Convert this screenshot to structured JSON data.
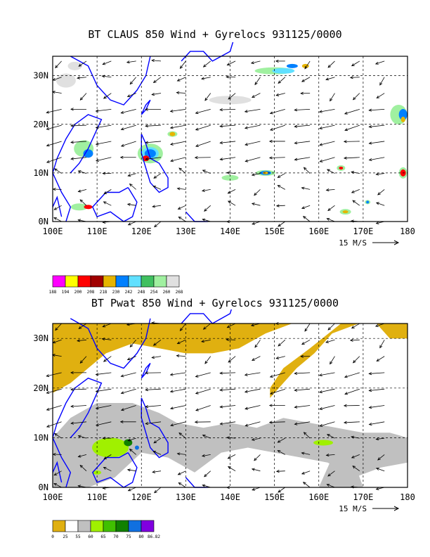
{
  "panels": [
    {
      "title": "BT CLAUS 850 Wind + Gyrelocs 931125/0000",
      "lat_labels": [
        "30N",
        "20N",
        "10N",
        "0N"
      ],
      "lon_labels": [
        "100E",
        "110E",
        "120E",
        "130E",
        "140E",
        "150E",
        "160E",
        "170E",
        "180"
      ],
      "scale_label": "15 M/S",
      "colorbar": {
        "colors": [
          "#ff00ff",
          "#ffff00",
          "#ff0000",
          "#a00000",
          "#e6b400",
          "#0080ff",
          "#60e0ff",
          "#40c060",
          "#a0f0a0",
          "#e0e0e0"
        ],
        "labels": [
          "188",
          "194",
          "200",
          "208",
          "218",
          "230",
          "242",
          "248",
          "254",
          "260",
          "268"
        ]
      }
    },
    {
      "title": "BT Pwat 850 Wind + Gyrelocs 931125/0000",
      "lat_labels": [
        "30N",
        "20N",
        "10N",
        "0N"
      ],
      "lon_labels": [
        "100E",
        "110E",
        "120E",
        "130E",
        "140E",
        "150E",
        "160E",
        "170E",
        "180"
      ],
      "scale_label": "15 M/S",
      "colorbar": {
        "colors": [
          "#e0b010",
          "#ffffff",
          "#c0c0c0",
          "#a0f000",
          "#40c000",
          "#108000",
          "#1070e0",
          "#8000e0"
        ],
        "labels": [
          "0",
          "25",
          "55",
          "60",
          "65",
          "70",
          "75",
          "80",
          "86.82"
        ]
      }
    }
  ],
  "colors": {
    "coast": "#0000ff",
    "frame": "#000000",
    "grid": "#000000"
  }
}
